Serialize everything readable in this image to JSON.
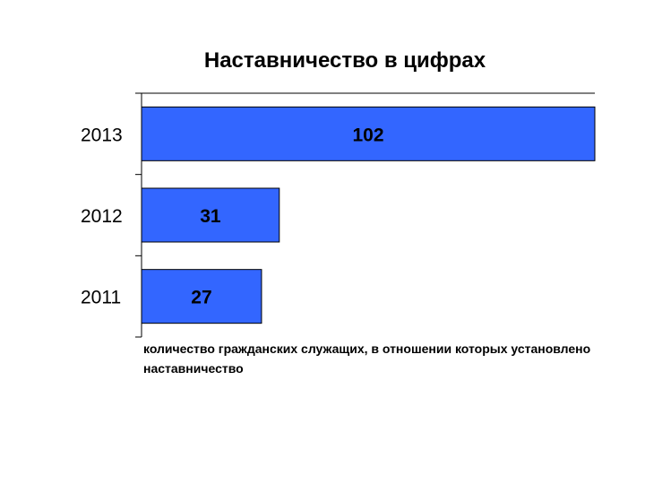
{
  "chart_data": {
    "type": "bar",
    "orientation": "horizontal",
    "title": "Наставничество в цифрах",
    "categories": [
      "2013",
      "2012",
      "2011"
    ],
    "values": [
      102,
      31,
      27
    ],
    "data_labels": [
      "102",
      "31",
      "27"
    ],
    "xlim": [
      0,
      102
    ],
    "grid": false,
    "legend_position": "bottom",
    "series": [
      {
        "name": "количество гражданских служащих, в отношении которых установлено наставничество",
        "values": [
          102,
          31,
          27
        ],
        "color": "#3366ff"
      }
    ]
  }
}
